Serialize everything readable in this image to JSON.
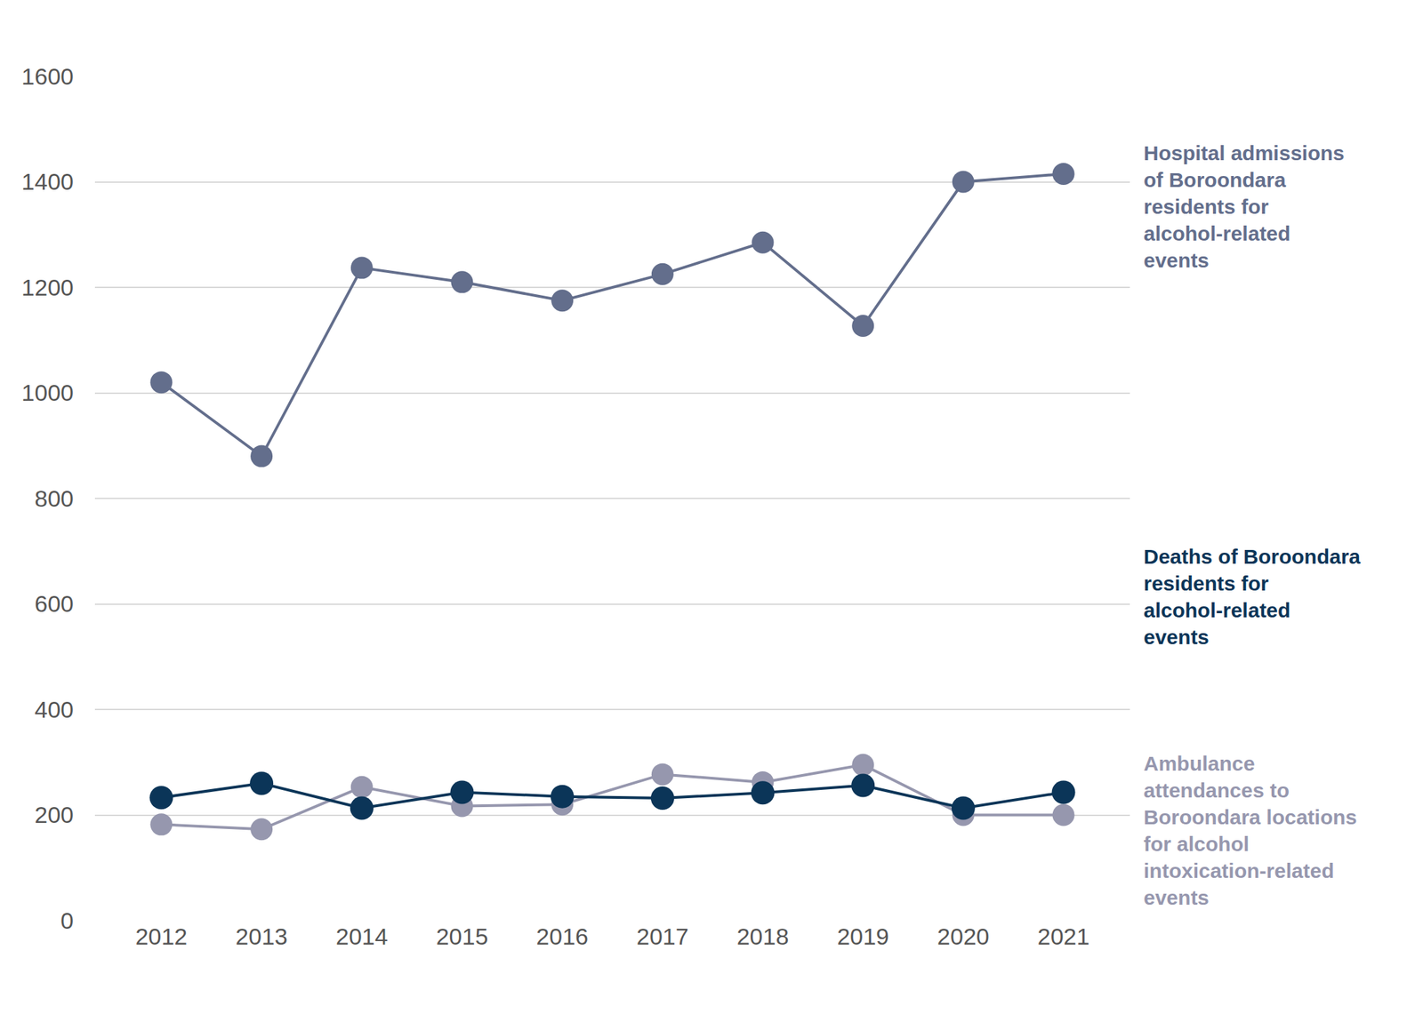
{
  "chart_data": {
    "type": "line",
    "categories": [
      "2012",
      "2013",
      "2014",
      "2015",
      "2016",
      "2017",
      "2018",
      "2019",
      "2020",
      "2021"
    ],
    "series": [
      {
        "name": "Hospital admissions of Boroondara residents for alcohol-related events",
        "color": "#636e8c",
        "values": [
          1020,
          880,
          1237,
          1210,
          1175,
          1225,
          1285,
          1127,
          1400,
          1415
        ]
      },
      {
        "name": "Ambulance attendances to Boroondara locations for alcohol intoxication-related events",
        "color": "#9697ae",
        "values": [
          182,
          173,
          253,
          217,
          220,
          277,
          262,
          295,
          200,
          200
        ]
      },
      {
        "name": "Deaths of Boroondara residents for alcohol-related events",
        "color": "#0b3558",
        "values": [
          233,
          260,
          213,
          243,
          235,
          232,
          242,
          256,
          213,
          243
        ]
      }
    ],
    "ylim": [
      0,
      1600
    ],
    "yticks": [
      0,
      200,
      400,
      600,
      800,
      1000,
      1200,
      1400,
      1600
    ],
    "grid": true,
    "marker": "circle",
    "line_style": "solid"
  }
}
